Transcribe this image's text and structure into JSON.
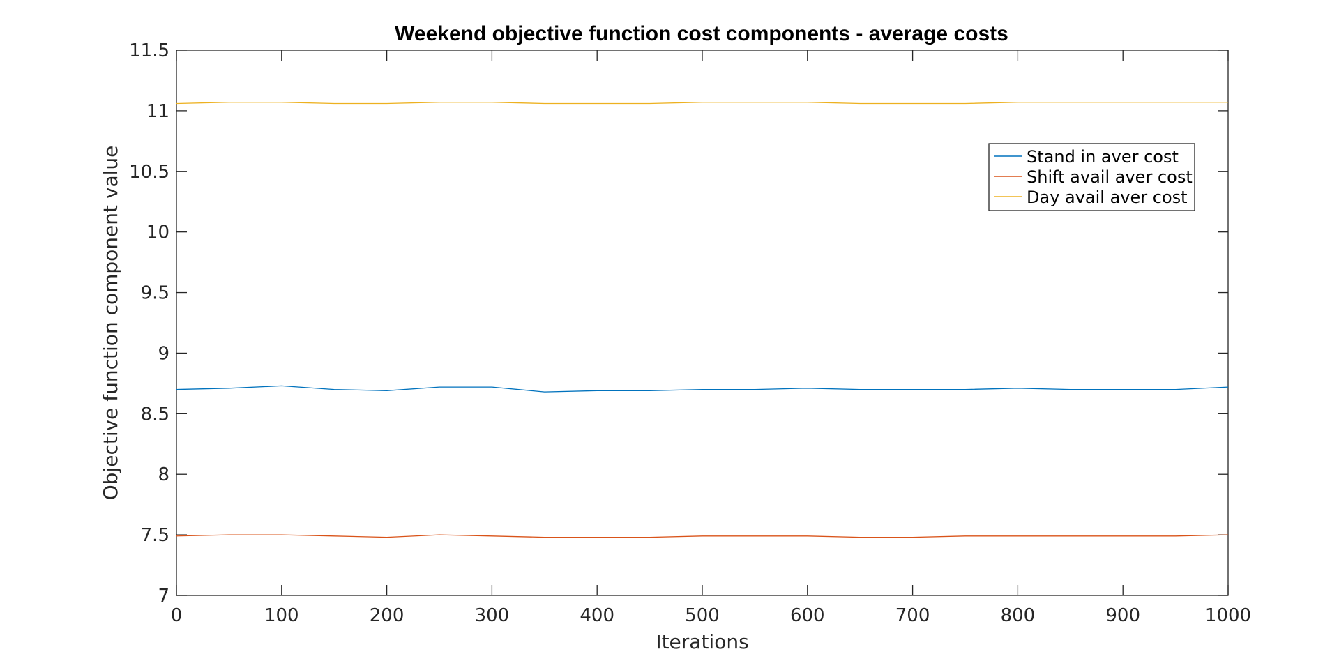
{
  "chart_data": {
    "type": "line",
    "title": "Weekend objective function cost components - average costs",
    "xlabel": "Iterations",
    "ylabel": "Objective function component value",
    "xlim": [
      0,
      1000
    ],
    "ylim": [
      7,
      11.5
    ],
    "xticks": [
      0,
      100,
      200,
      300,
      400,
      500,
      600,
      700,
      800,
      900,
      1000
    ],
    "yticks": [
      7,
      7.5,
      8,
      8.5,
      9,
      9.5,
      10,
      10.5,
      11,
      11.5
    ],
    "grid": false,
    "legend_position": "top-right",
    "series": [
      {
        "name": "Stand in aver cost",
        "color": "#0072BD",
        "x": [
          0,
          50,
          100,
          150,
          200,
          250,
          300,
          350,
          400,
          450,
          500,
          550,
          600,
          650,
          700,
          750,
          800,
          850,
          900,
          950,
          1000
        ],
        "values": [
          8.7,
          8.71,
          8.73,
          8.7,
          8.69,
          8.72,
          8.72,
          8.68,
          8.69,
          8.69,
          8.7,
          8.7,
          8.71,
          8.7,
          8.7,
          8.7,
          8.71,
          8.7,
          8.7,
          8.7,
          8.72
        ]
      },
      {
        "name": "Shift avail aver cost",
        "color": "#D95319",
        "x": [
          0,
          50,
          100,
          150,
          200,
          250,
          300,
          350,
          400,
          450,
          500,
          550,
          600,
          650,
          700,
          750,
          800,
          850,
          900,
          950,
          1000
        ],
        "values": [
          7.49,
          7.5,
          7.5,
          7.49,
          7.48,
          7.5,
          7.49,
          7.48,
          7.48,
          7.48,
          7.49,
          7.49,
          7.49,
          7.48,
          7.48,
          7.49,
          7.49,
          7.49,
          7.49,
          7.49,
          7.5
        ]
      },
      {
        "name": "Day avail aver cost",
        "color": "#EDB120",
        "x": [
          0,
          50,
          100,
          150,
          200,
          250,
          300,
          350,
          400,
          450,
          500,
          550,
          600,
          650,
          700,
          750,
          800,
          850,
          900,
          950,
          1000
        ],
        "values": [
          11.06,
          11.07,
          11.07,
          11.06,
          11.06,
          11.07,
          11.07,
          11.06,
          11.06,
          11.06,
          11.07,
          11.07,
          11.07,
          11.06,
          11.06,
          11.06,
          11.07,
          11.07,
          11.07,
          11.07,
          11.07
        ]
      }
    ]
  }
}
